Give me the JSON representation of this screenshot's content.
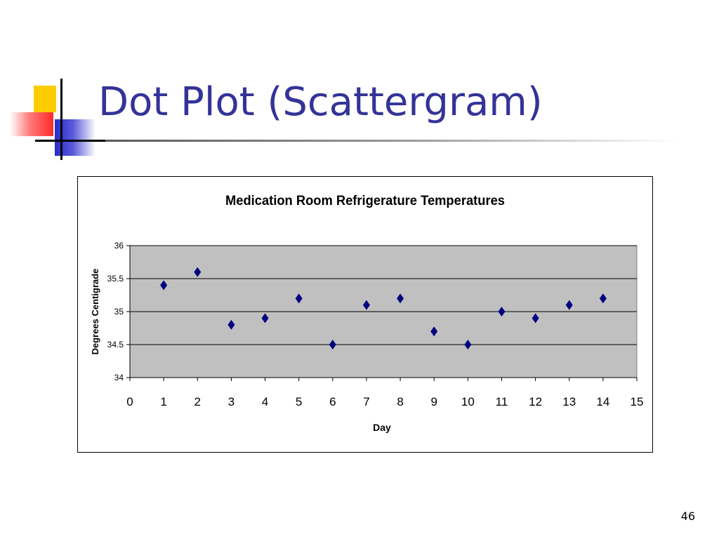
{
  "slide": {
    "title": "Dot Plot (Scattergram)",
    "page_number": "46"
  },
  "colors": {
    "title": "#333399",
    "marker": "#000080",
    "plot_area": "#c0c0c0",
    "accent_yellow": "#ffcc00",
    "accent_red": "#ff2a2a",
    "accent_blue": "#2a2acc"
  },
  "chart_data": {
    "type": "scatter",
    "title": "Medication Room Refrigerature Temperatures",
    "xlabel": "Day",
    "ylabel": "Degrees Centigrade",
    "x": [
      1,
      2,
      3,
      4,
      5,
      6,
      7,
      8,
      9,
      10,
      11,
      12,
      13,
      14
    ],
    "y": [
      35.4,
      35.6,
      34.8,
      34.9,
      35.2,
      34.5,
      35.1,
      35.2,
      34.7,
      34.5,
      35.0,
      34.9,
      35.1,
      35.2
    ],
    "xlim": [
      0,
      15
    ],
    "ylim": [
      34,
      36
    ],
    "x_ticks": [
      "0",
      "1",
      "2",
      "3",
      "4",
      "5",
      "6",
      "7",
      "8",
      "9",
      "10",
      "11",
      "12",
      "13",
      "14",
      "15"
    ],
    "y_ticks": [
      "34",
      "34.5",
      "35",
      "35.5",
      "36"
    ],
    "grid": "horizontal",
    "legend": "none",
    "marker": "diamond"
  }
}
